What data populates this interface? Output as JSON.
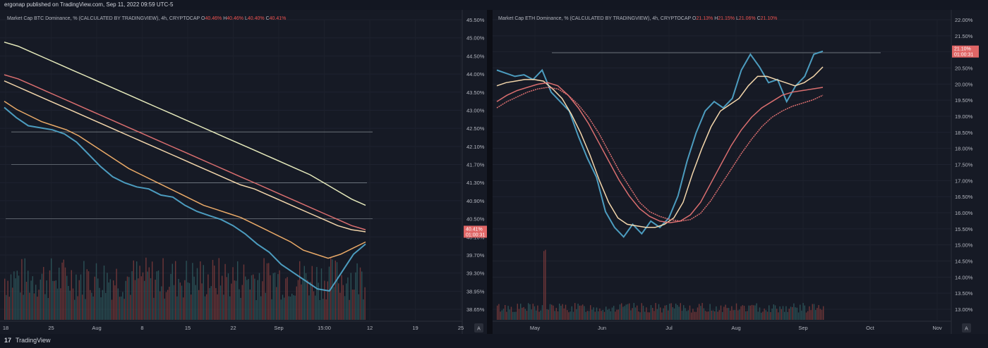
{
  "header": {
    "published_by": "ergonap published on TradingView.com, Sep 11, 2022 09:59 UTC-5"
  },
  "footer": {
    "logo_glyph": "17",
    "brand": "TradingView"
  },
  "charts": [
    {
      "legend": {
        "title": "Market Cap BTC Dominance, % (CALCULATED BY TRADINGVIEW), 4h, CRYPTOCAP",
        "o_label": "O",
        "o": "40.46%",
        "h_label": "H",
        "h": "40.46%",
        "l_label": "L",
        "l": "40.40%",
        "c_label": "C",
        "c": "40.41%"
      },
      "price_tag": {
        "value": "40.41%",
        "countdown": "01:00:31"
      },
      "scale_button": "A"
    },
    {
      "legend": {
        "title": "Market Cap ETH Dominance, % (CALCULATED BY TRADINGVIEW), 4h, CRYPTOCAP",
        "o_label": "O",
        "o": "21.13%",
        "h_label": "H",
        "h": "21.15%",
        "l_label": "L",
        "l": "21.06%",
        "c_label": "C",
        "c": "21.10%"
      },
      "price_tag": {
        "value": "21.10%",
        "countdown": "01:00:31"
      },
      "scale_button": "A"
    }
  ],
  "chart_data": [
    {
      "type": "line",
      "title": "Market Cap BTC Dominance, % (CALCULATED BY TRADINGVIEW), 4h, CRYPTOCAP",
      "y_ticks": [
        "45.50%",
        "45.00%",
        "44.50%",
        "44.00%",
        "43.50%",
        "43.00%",
        "42.50%",
        "42.10%",
        "41.70%",
        "41.30%",
        "40.90%",
        "40.50%",
        "40.10%",
        "39.70%",
        "39.30%",
        "38.95%",
        "38.65%"
      ],
      "x_ticks": [
        "18",
        "25",
        "Aug",
        "8",
        "15",
        "22",
        "Sep",
        "15:00",
        "12",
        "19",
        "25"
      ],
      "ylim": [
        38.5,
        45.6
      ],
      "series": [
        {
          "color": "#4fa3c7",
          "values": [
            43.45,
            43.2,
            43.0,
            42.95,
            42.9,
            42.8,
            42.6,
            42.3,
            42.0,
            41.75,
            41.6,
            41.5,
            41.45,
            41.3,
            41.25,
            41.05,
            40.9,
            40.8,
            40.7,
            40.55,
            40.35,
            40.1,
            39.9,
            39.6,
            39.4,
            39.2,
            39.0,
            38.95,
            39.4,
            39.85,
            40.1
          ]
        },
        {
          "color": "#f6b26b",
          "values": [
            43.6,
            43.4,
            43.25,
            43.1,
            43.0,
            42.9,
            42.75,
            42.55,
            42.35,
            42.15,
            41.95,
            41.8,
            41.65,
            41.5,
            41.35,
            41.2,
            41.05,
            40.95,
            40.85,
            40.75,
            40.6,
            40.45,
            40.3,
            40.15,
            39.95,
            39.85,
            39.75,
            39.85,
            40.0,
            40.15
          ]
        },
        {
          "color": "#ffe0b2",
          "values": [
            44.1,
            43.95,
            43.8,
            43.65,
            43.5,
            43.35,
            43.2,
            43.05,
            42.9,
            42.75,
            42.6,
            42.45,
            42.3,
            42.15,
            42.0,
            41.85,
            41.7,
            41.55,
            41.45,
            41.3,
            41.15,
            41.0,
            40.85,
            40.7,
            40.55,
            40.45,
            40.4
          ]
        },
        {
          "color": "#e57373",
          "values": [
            44.25,
            44.15,
            44.0,
            43.85,
            43.7,
            43.55,
            43.4,
            43.25,
            43.1,
            42.95,
            42.8,
            42.65,
            42.5,
            42.35,
            42.2,
            42.05,
            41.9,
            41.75,
            41.6,
            41.45,
            41.3,
            41.15,
            41.0,
            40.85,
            40.7,
            40.55,
            40.45
          ]
        },
        {
          "color": "#f0f4c3",
          "values": [
            45.05,
            44.95,
            44.8,
            44.65,
            44.5,
            44.35,
            44.2,
            44.05,
            43.9,
            43.75,
            43.6,
            43.45,
            43.3,
            43.15,
            43.0,
            42.85,
            42.7,
            42.55,
            42.4,
            42.25,
            42.1,
            41.95,
            41.8,
            41.6,
            41.4,
            41.2,
            41.05
          ]
        }
      ]
    },
    {
      "type": "line",
      "title": "Market Cap ETH Dominance, % (CALCULATED BY TRADINGVIEW), 4h, CRYPTOCAP",
      "y_ticks": [
        "22.00%",
        "21.50%",
        "21.00%",
        "20.50%",
        "20.00%",
        "19.50%",
        "19.00%",
        "18.50%",
        "18.00%",
        "17.50%",
        "17.00%",
        "16.50%",
        "16.00%",
        "15.50%",
        "15.00%",
        "14.50%",
        "14.00%",
        "13.50%",
        "13.00%"
      ],
      "x_ticks": [
        "May",
        "Jun",
        "Jul",
        "Aug",
        "Sep",
        "Oct",
        "Nov"
      ],
      "ylim": [
        12.9,
        22.1
      ],
      "series": [
        {
          "color": "#4fa3c7",
          "values": [
            20.5,
            20.4,
            20.3,
            20.35,
            20.2,
            20.5,
            19.8,
            19.5,
            19.2,
            18.4,
            17.7,
            17.1,
            16.0,
            15.5,
            15.2,
            15.6,
            15.3,
            15.7,
            15.5,
            15.8,
            16.5,
            17.6,
            18.5,
            19.2,
            19.5,
            19.3,
            19.6,
            20.5,
            21.0,
            20.6,
            20.1,
            20.2,
            19.5,
            20.0,
            20.3,
            21.0,
            21.1
          ]
        },
        {
          "color": "#ffe0b2",
          "values": [
            20.0,
            20.1,
            20.15,
            20.2,
            20.2,
            20.15,
            19.9,
            19.6,
            19.1,
            18.5,
            17.8,
            17.0,
            16.3,
            15.8,
            15.6,
            15.55,
            15.5,
            15.5,
            15.6,
            15.8,
            16.3,
            17.2,
            18.0,
            18.7,
            19.2,
            19.4,
            19.6,
            20.0,
            20.3,
            20.3,
            20.2,
            20.1,
            20.0,
            20.1,
            20.3,
            20.6
          ]
        },
        {
          "color": "#e57373",
          "values": [
            19.5,
            19.7,
            19.85,
            19.95,
            20.05,
            20.1,
            20.0,
            19.7,
            19.3,
            18.8,
            18.2,
            17.6,
            17.0,
            16.5,
            16.1,
            15.85,
            15.7,
            15.65,
            15.7,
            15.9,
            16.3,
            16.9,
            17.5,
            18.1,
            18.6,
            19.0,
            19.3,
            19.5,
            19.7,
            19.8,
            19.85,
            19.9,
            19.95
          ]
        },
        {
          "color": "#e57373",
          "values": [
            19.3,
            19.5,
            19.65,
            19.8,
            19.9,
            19.95,
            19.9,
            19.7,
            19.4,
            19.0,
            18.5,
            17.9,
            17.3,
            16.8,
            16.3,
            16.0,
            15.85,
            15.75,
            15.7,
            15.75,
            15.95,
            16.35,
            16.85,
            17.35,
            17.85,
            18.3,
            18.7,
            19.0,
            19.2,
            19.35,
            19.45,
            19.55,
            19.7
          ]
        }
      ]
    }
  ]
}
